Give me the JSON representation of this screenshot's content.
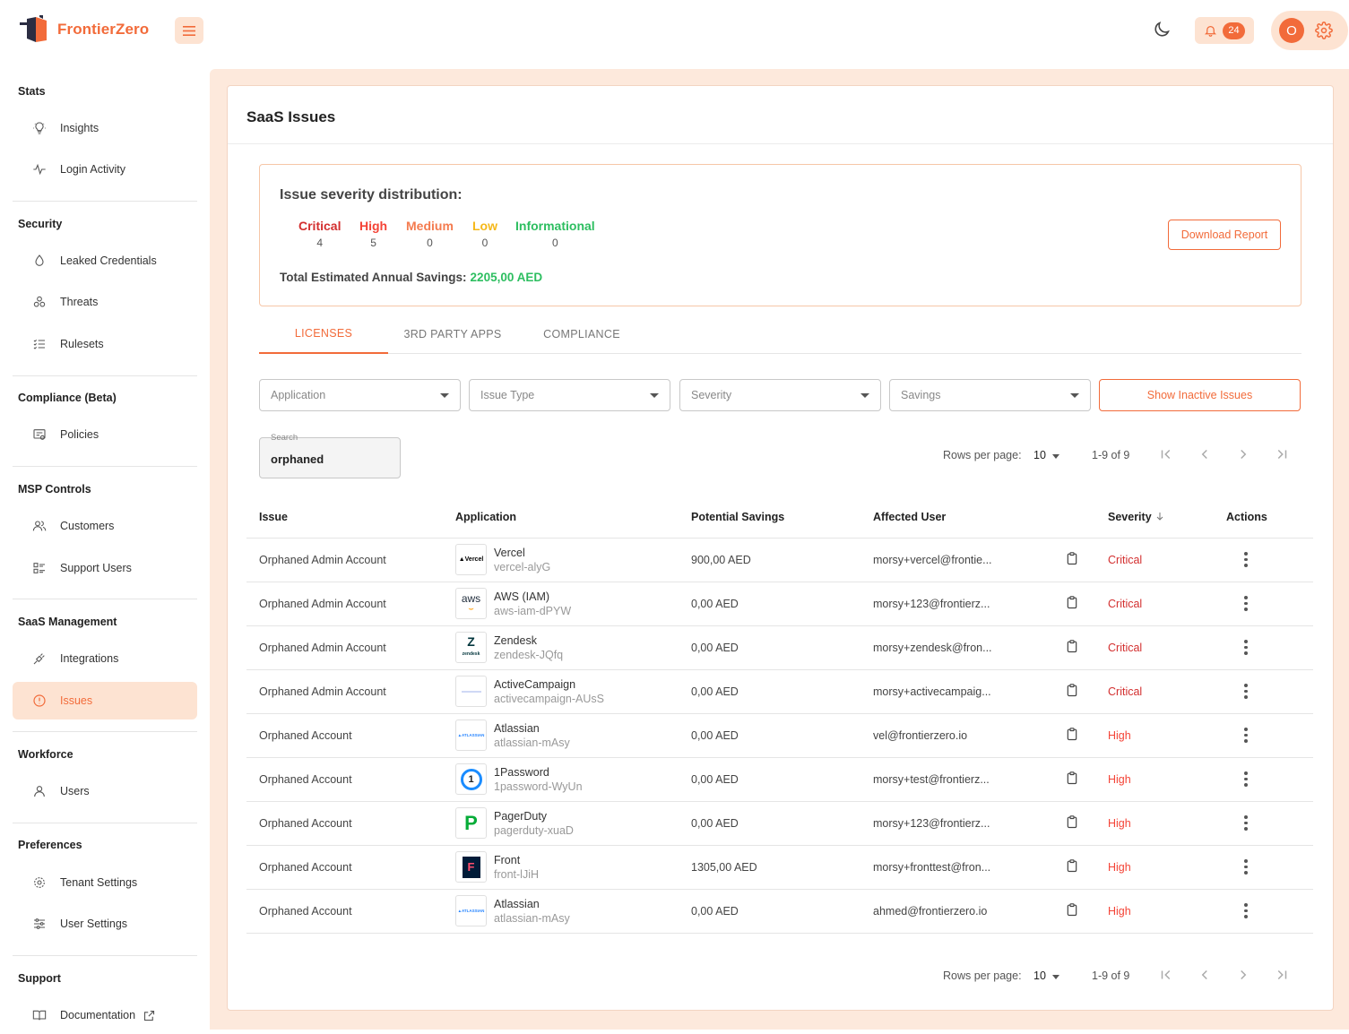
{
  "brand": {
    "name": "FrontierZero",
    "accent": "#f26b3a"
  },
  "header": {
    "notifications_count": "24",
    "avatar_initial": "O"
  },
  "sidebar": {
    "sections": [
      {
        "title": "Stats",
        "items": [
          {
            "label": "Insights",
            "icon": "lightbulb-icon"
          },
          {
            "label": "Login Activity",
            "icon": "pulse-icon"
          }
        ]
      },
      {
        "title": "Security",
        "items": [
          {
            "label": "Leaked Credentials",
            "icon": "droplet-icon"
          },
          {
            "label": "Threats",
            "icon": "biohazard-icon"
          },
          {
            "label": "Rulesets",
            "icon": "checklist-icon"
          }
        ]
      },
      {
        "title": "Compliance (Beta)",
        "items": [
          {
            "label": "Policies",
            "icon": "policy-icon"
          }
        ]
      },
      {
        "title": "MSP Controls",
        "items": [
          {
            "label": "Customers",
            "icon": "users-icon"
          },
          {
            "label": "Support Users",
            "icon": "list-icon"
          }
        ]
      },
      {
        "title": "SaaS Management",
        "items": [
          {
            "label": "Integrations",
            "icon": "plug-icon"
          },
          {
            "label": "Issues",
            "icon": "alert-circle-icon"
          }
        ]
      },
      {
        "title": "Workforce",
        "items": [
          {
            "label": "Users",
            "icon": "user-icon"
          }
        ]
      },
      {
        "title": "Preferences",
        "items": [
          {
            "label": "Tenant Settings",
            "icon": "gear-icon"
          },
          {
            "label": "User Settings",
            "icon": "sliders-icon"
          }
        ]
      },
      {
        "title": "Support",
        "items": [
          {
            "label": "Documentation",
            "icon": "book-icon"
          }
        ]
      }
    ]
  },
  "page": {
    "title": "SaaS Issues"
  },
  "distribution": {
    "title": "Issue severity distribution:",
    "levels": [
      {
        "label": "Critical",
        "count": "4",
        "color": "#d32f2f"
      },
      {
        "label": "High",
        "count": "5",
        "color": "#f44336"
      },
      {
        "label": "Medium",
        "count": "0",
        "color": "#f47b4f"
      },
      {
        "label": "Low",
        "count": "0",
        "color": "#f5b81a"
      },
      {
        "label": "Informational",
        "count": "0",
        "color": "#2dbe60"
      }
    ],
    "savings_label": "Total Estimated Annual Savings:",
    "savings_value": "2205,00 AED",
    "download_label": "Download Report"
  },
  "tabs": [
    "LICENSES",
    "3RD PARTY APPS",
    "COMPLIANCE"
  ],
  "filters": {
    "application": "Application",
    "issue_type": "Issue Type",
    "severity": "Severity",
    "savings": "Savings",
    "inactive_button": "Show Inactive Issues"
  },
  "search": {
    "label": "Search",
    "value": "orphaned"
  },
  "pagination": {
    "rows_label": "Rows per page:",
    "rows_value": "10",
    "range": "1-9 of 9"
  },
  "table": {
    "headers": {
      "issue": "Issue",
      "application": "Application",
      "savings": "Potential Savings",
      "user": "Affected User",
      "severity": "Severity",
      "actions": "Actions"
    },
    "rows": [
      {
        "issue": "Orphaned Admin Account",
        "app": "Vercel",
        "app_id": "vercel-alyG",
        "logo": "Vercel",
        "savings": "900,00 AED",
        "user": "morsy+vercel@frontie...",
        "severity": "Critical"
      },
      {
        "issue": "Orphaned Admin Account",
        "app": "AWS (IAM)",
        "app_id": "aws-iam-dPYW",
        "logo": "aws",
        "savings": "0,00 AED",
        "user": "morsy+123@frontierz...",
        "severity": "Critical"
      },
      {
        "issue": "Orphaned Admin Account",
        "app": "Zendesk",
        "app_id": "zendesk-JQfq",
        "logo": "Z",
        "savings": "0,00 AED",
        "user": "morsy+zendesk@fron...",
        "severity": "Critical"
      },
      {
        "issue": "Orphaned Admin Account",
        "app": "ActiveCampaign",
        "app_id": "activecampaign-AUsS",
        "logo": "",
        "savings": "0,00 AED",
        "user": "morsy+activecampaig...",
        "severity": "Critical"
      },
      {
        "issue": "Orphaned Account",
        "app": "Atlassian",
        "app_id": "atlassian-mAsy",
        "logo": "ATLASSIAN",
        "savings": "0,00 AED",
        "user": "vel@frontierzero.io",
        "severity": "High"
      },
      {
        "issue": "Orphaned Account",
        "app": "1Password",
        "app_id": "1password-WyUn",
        "logo": "1",
        "savings": "0,00 AED",
        "user": "morsy+test@frontierz...",
        "severity": "High"
      },
      {
        "issue": "Orphaned Account",
        "app": "PagerDuty",
        "app_id": "pagerduty-xuaD",
        "logo": "P",
        "savings": "0,00 AED",
        "user": "morsy+123@frontierz...",
        "severity": "High"
      },
      {
        "issue": "Orphaned Account",
        "app": "Front",
        "app_id": "front-lJiH",
        "logo": "F",
        "savings": "1305,00 AED",
        "user": "morsy+fronttest@fron...",
        "severity": "High"
      },
      {
        "issue": "Orphaned Account",
        "app": "Atlassian",
        "app_id": "atlassian-mAsy",
        "logo": "ATLASSIAN",
        "savings": "0,00 AED",
        "user": "ahmed@frontierzero.io",
        "severity": "High"
      }
    ]
  }
}
